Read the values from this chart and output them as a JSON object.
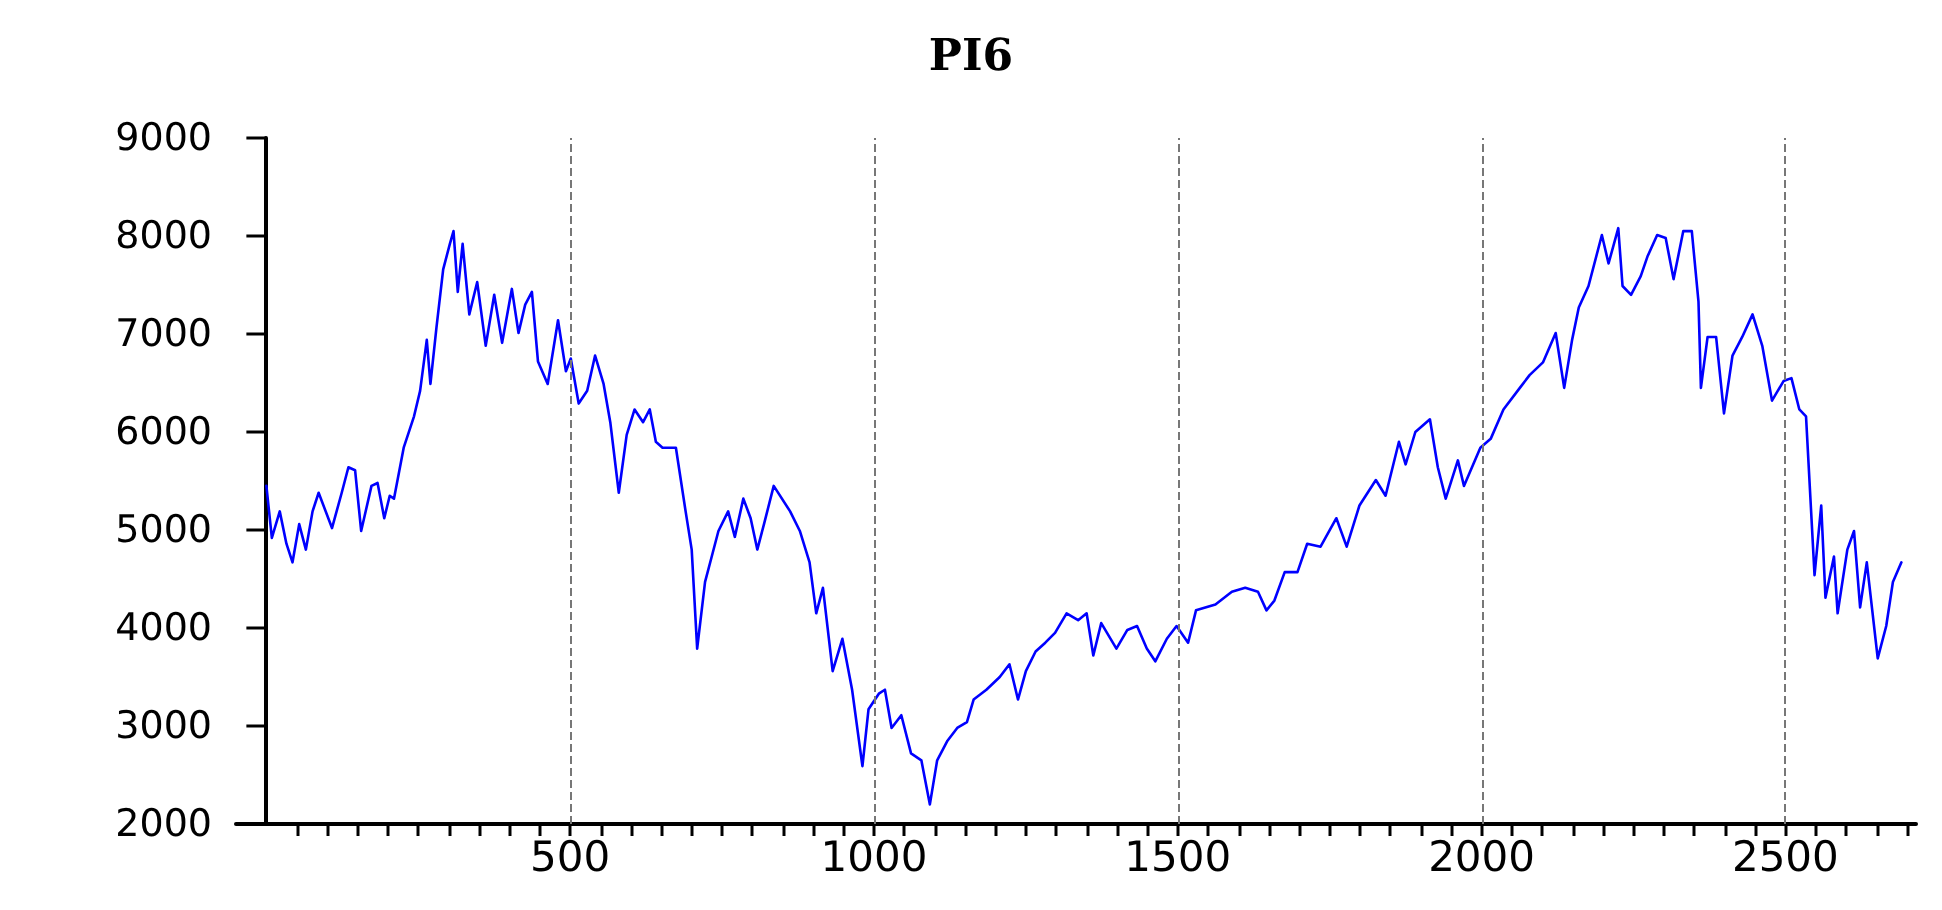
{
  "chart_data": {
    "type": "line",
    "title": "PI6",
    "xlim": [
      -50,
      2715
    ],
    "ylim": [
      2000,
      9000
    ],
    "yticks": [
      2000,
      3000,
      4000,
      5000,
      6000,
      7000,
      8000,
      9000
    ],
    "xticks": [
      {
        "value": 50,
        "label": null
      },
      {
        "value": 100,
        "label": null
      },
      {
        "value": 150,
        "label": null
      },
      {
        "value": 200,
        "label": null
      },
      {
        "value": 250,
        "label": null
      },
      {
        "value": 300,
        "label": null
      },
      {
        "value": 350,
        "label": null
      },
      {
        "value": 400,
        "label": null
      },
      {
        "value": 450,
        "label": null
      },
      500,
      {
        "value": 550,
        "label": null
      },
      {
        "value": 600,
        "label": null
      },
      {
        "value": 650,
        "label": null
      },
      {
        "value": 700,
        "label": null
      },
      {
        "value": 750,
        "label": null
      },
      {
        "value": 800,
        "label": null
      },
      {
        "value": 850,
        "label": null
      },
      {
        "value": 900,
        "label": null
      },
      {
        "value": 950,
        "label": null
      },
      1000,
      {
        "value": 1050,
        "label": null
      },
      {
        "value": 1100,
        "label": null
      },
      {
        "value": 1150,
        "label": null
      },
      {
        "value": 1200,
        "label": null
      },
      {
        "value": 1250,
        "label": null
      },
      {
        "value": 1300,
        "label": null
      },
      {
        "value": 1350,
        "label": null
      },
      {
        "value": 1400,
        "label": null
      },
      {
        "value": 1450,
        "label": null
      },
      1500,
      {
        "value": 1550,
        "label": null
      },
      {
        "value": 1600,
        "label": null
      },
      {
        "value": 1650,
        "label": null
      },
      {
        "value": 1700,
        "label": null
      },
      {
        "value": 1750,
        "label": null
      },
      {
        "value": 1800,
        "label": null
      },
      {
        "value": 1850,
        "label": null
      },
      {
        "value": 1900,
        "label": null
      },
      {
        "value": 1950,
        "label": null
      },
      2000,
      {
        "value": 2050,
        "label": null
      },
      {
        "value": 2100,
        "label": null
      },
      {
        "value": 2150,
        "label": null
      },
      {
        "value": 2200,
        "label": null
      },
      {
        "value": 2250,
        "label": null
      },
      {
        "value": 2300,
        "label": null
      },
      {
        "value": 2350,
        "label": null
      },
      {
        "value": 2400,
        "label": null
      },
      {
        "value": 2450,
        "label": null
      },
      2500,
      {
        "value": 2550,
        "label": null
      },
      {
        "value": 2600,
        "label": null
      },
      {
        "value": 2650,
        "label": null
      },
      {
        "value": 2700,
        "label": null
      }
    ],
    "grid": "x",
    "marker": "none",
    "line_style": "solid",
    "series": [
      {
        "color": "#0000ff",
        "x": [
          0,
          9,
          22,
          33,
          43,
          54,
          65,
          76,
          86,
          108,
          124,
          135,
          146,
          156,
          173,
          183,
          194,
          203,
          210,
          226,
          243,
          253,
          264,
          270,
          280,
          291,
          302,
          308,
          315,
          323,
          334,
          347,
          361,
          375,
          388,
          404,
          415,
          426,
          437,
          447,
          463,
          480,
          493,
          501,
          514,
          528,
          541,
          555,
          566,
          580,
          593,
          606,
          620,
          631,
          641,
          652,
          674,
          690,
          700,
          709,
          722,
          733,
          744,
          760,
          771,
          785,
          797,
          808,
          819,
          835,
          862,
          878,
          894,
          905,
          916,
          932,
          948,
          964,
          981,
          991,
          1008,
          1018,
          1029,
          1045,
          1061,
          1078,
          1092,
          1104,
          1121,
          1137,
          1153,
          1164,
          1185,
          1207,
          1223,
          1237,
          1250,
          1266,
          1282,
          1298,
          1317,
          1336,
          1350,
          1361,
          1374,
          1399,
          1417,
          1433,
          1449,
          1463,
          1482,
          1498,
          1517,
          1530,
          1562,
          1589,
          1611,
          1632,
          1646,
          1659,
          1676,
          1697,
          1713,
          1735,
          1761,
          1778,
          1799,
          1826,
          1842,
          1864,
          1875,
          1891,
          1915,
          1928,
          1941,
          1961,
          1971,
          1998,
          2015,
          2036,
          2063,
          2079,
          2101,
          2122,
          2136,
          2149,
          2160,
          2176,
          2198,
          2209,
          2225,
          2232,
          2246,
          2262,
          2273,
          2289,
          2303,
          2316,
          2332,
          2346,
          2357,
          2361,
          2372,
          2386,
          2399,
          2413,
          2429,
          2446,
          2462,
          2478,
          2497,
          2510,
          2523,
          2534,
          2548,
          2559,
          2566,
          2580,
          2586,
          2602,
          2613,
          2623,
          2634,
          2652,
          2666,
          2677,
          2691
        ],
        "values": [
          5450,
          4920,
          5190,
          4860,
          4670,
          5060,
          4800,
          5190,
          5380,
          5020,
          5380,
          5640,
          5610,
          4990,
          5450,
          5480,
          5120,
          5350,
          5320,
          5840,
          6160,
          6420,
          6940,
          6490,
          7070,
          7660,
          7920,
          8050,
          7430,
          7920,
          7200,
          7530,
          6880,
          7400,
          6910,
          7460,
          7010,
          7300,
          7430,
          6720,
          6490,
          7140,
          6620,
          6750,
          6290,
          6420,
          6780,
          6490,
          6100,
          5380,
          5970,
          6230,
          6100,
          6230,
          5900,
          5840,
          5840,
          5190,
          4800,
          3790,
          4470,
          4730,
          4990,
          5190,
          4930,
          5320,
          5120,
          4800,
          5060,
          5450,
          5190,
          4990,
          4670,
          4150,
          4410,
          3560,
          3890,
          3370,
          2590,
          3170,
          3330,
          3370,
          2980,
          3110,
          2720,
          2650,
          2200,
          2650,
          2850,
          2980,
          3040,
          3270,
          3370,
          3500,
          3630,
          3270,
          3560,
          3760,
          3850,
          3950,
          4150,
          4080,
          4150,
          3720,
          4050,
          3790,
          3980,
          4020,
          3790,
          3660,
          3890,
          4020,
          3850,
          4180,
          4240,
          4370,
          4410,
          4370,
          4180,
          4280,
          4570,
          4570,
          4860,
          4830,
          5120,
          4830,
          5250,
          5510,
          5350,
          5900,
          5670,
          6000,
          6130,
          5640,
          5320,
          5710,
          5450,
          5840,
          5930,
          6230,
          6450,
          6580,
          6710,
          7010,
          6450,
          6940,
          7270,
          7490,
          8010,
          7720,
          8080,
          7490,
          7400,
          7590,
          7790,
          8010,
          7980,
          7560,
          8050,
          8050,
          7330,
          6450,
          6970,
          6970,
          6190,
          6780,
          6970,
          7200,
          6880,
          6320,
          6520,
          6550,
          6230,
          6160,
          4540,
          5250,
          4310,
          4730,
          4150,
          4800,
          4990,
          4210,
          4670,
          3690,
          4020,
          4470,
          4670
        ]
      }
    ]
  }
}
